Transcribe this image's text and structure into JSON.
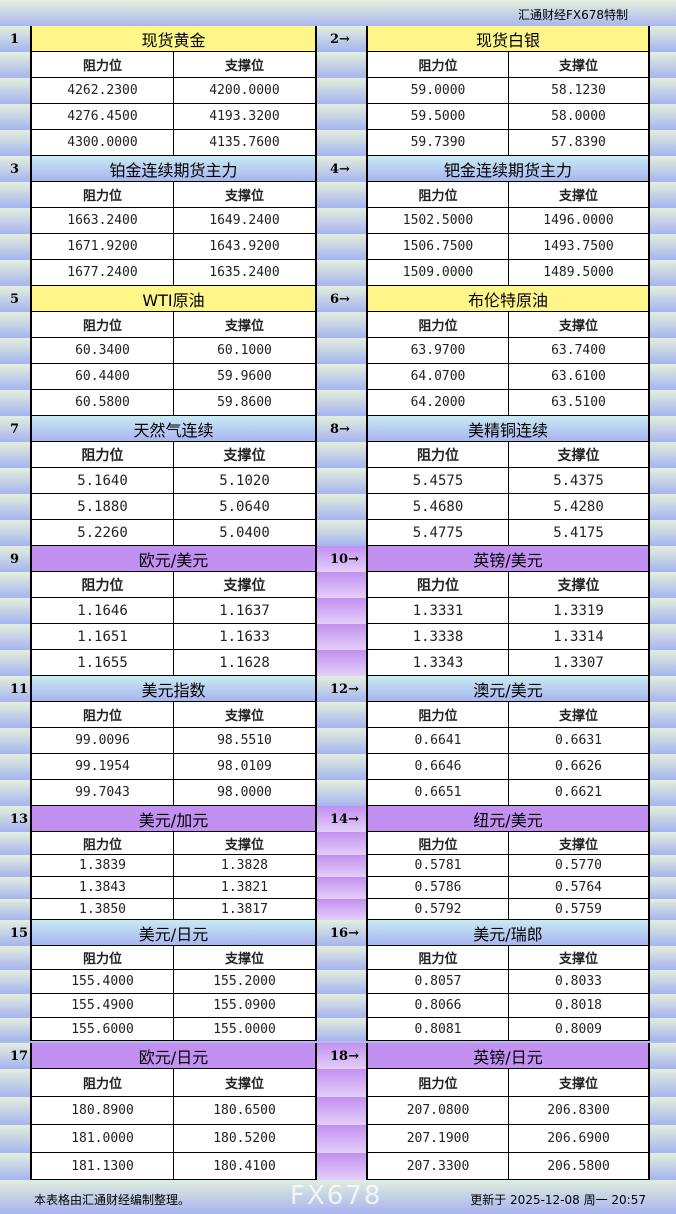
{
  "header": {
    "credit": "汇通财经FX678特制"
  },
  "columns": {
    "resistance": "阻力位",
    "support": "支撑位"
  },
  "sections": [
    {
      "no": "1",
      "title": "现货黄金",
      "color": "yellow",
      "rows": [
        [
          "4262.2300",
          "4200.0000"
        ],
        [
          "4276.4500",
          "4193.3200"
        ],
        [
          "4300.0000",
          "4135.7600"
        ]
      ]
    },
    {
      "no": "2→",
      "title": "现货白银",
      "color": "yellow",
      "rows": [
        [
          "59.0000",
          "58.1230"
        ],
        [
          "59.5000",
          "58.0000"
        ],
        [
          "59.7390",
          "57.8390"
        ]
      ]
    },
    {
      "no": "3",
      "title": "铂金连续期货主力",
      "color": "blue",
      "rows": [
        [
          "1663.2400",
          "1649.2400"
        ],
        [
          "1671.9200",
          "1643.9200"
        ],
        [
          "1677.2400",
          "1635.2400"
        ]
      ]
    },
    {
      "no": "4→",
      "title": "钯金连续期货主力",
      "color": "blue",
      "rows": [
        [
          "1502.5000",
          "1496.0000"
        ],
        [
          "1506.7500",
          "1493.7500"
        ],
        [
          "1509.0000",
          "1489.5000"
        ]
      ]
    },
    {
      "no": "5",
      "title": "WTI原油",
      "color": "yellow",
      "rows": [
        [
          "60.3400",
          "60.1000"
        ],
        [
          "60.4400",
          "59.9600"
        ],
        [
          "60.5800",
          "59.8600"
        ]
      ]
    },
    {
      "no": "6→",
      "title": "布伦特原油",
      "color": "yellow",
      "rows": [
        [
          "63.9700",
          "63.7400"
        ],
        [
          "64.0700",
          "63.6100"
        ],
        [
          "64.2000",
          "63.5100"
        ]
      ]
    },
    {
      "no": "7",
      "title": "天然气连续",
      "color": "blue",
      "rows": [
        [
          "5.1640",
          "5.1020"
        ],
        [
          "5.1880",
          "5.0640"
        ],
        [
          "5.2260",
          "5.0400"
        ]
      ]
    },
    {
      "no": "8→",
      "title": "美精铜连续",
      "color": "blue",
      "rows": [
        [
          "5.4575",
          "5.4375"
        ],
        [
          "5.4680",
          "5.4280"
        ],
        [
          "5.4775",
          "5.4175"
        ]
      ]
    },
    {
      "no": "9",
      "title": "欧元/美元",
      "color": "purple",
      "rows": [
        [
          "1.1646",
          "1.1637"
        ],
        [
          "1.1651",
          "1.1633"
        ],
        [
          "1.1655",
          "1.1628"
        ]
      ]
    },
    {
      "no": "10→",
      "title": "英镑/美元",
      "color": "purple",
      "rows": [
        [
          "1.3331",
          "1.3319"
        ],
        [
          "1.3338",
          "1.3314"
        ],
        [
          "1.3343",
          "1.3307"
        ]
      ]
    },
    {
      "no": "11",
      "title": "美元指数",
      "color": "blue",
      "rows": [
        [
          "99.0096",
          "98.5510"
        ],
        [
          "99.1954",
          "98.0109"
        ],
        [
          "99.7043",
          "98.0000"
        ]
      ]
    },
    {
      "no": "12→",
      "title": "澳元/美元",
      "color": "blue",
      "rows": [
        [
          "0.6641",
          "0.6631"
        ],
        [
          "0.6646",
          "0.6626"
        ],
        [
          "0.6651",
          "0.6621"
        ]
      ]
    },
    {
      "no": "13",
      "title": "美元/加元",
      "color": "purple",
      "rows": [
        [
          "1.3839",
          "1.3828"
        ],
        [
          "1.3843",
          "1.3821"
        ],
        [
          "1.3850",
          "1.3817"
        ]
      ]
    },
    {
      "no": "14→",
      "title": "纽元/美元",
      "color": "purple",
      "rows": [
        [
          "0.5781",
          "0.5770"
        ],
        [
          "0.5786",
          "0.5764"
        ],
        [
          "0.5792",
          "0.5759"
        ]
      ]
    },
    {
      "no": "15",
      "title": "美元/日元",
      "color": "blue",
      "rows": [
        [
          "155.4000",
          "155.2000"
        ],
        [
          "155.4900",
          "155.0900"
        ],
        [
          "155.6000",
          "155.0000"
        ]
      ]
    },
    {
      "no": "16→",
      "title": "美元/瑞郎",
      "color": "blue",
      "rows": [
        [
          "0.8057",
          "0.8033"
        ],
        [
          "0.8066",
          "0.8018"
        ],
        [
          "0.8081",
          "0.8009"
        ]
      ]
    },
    {
      "no": "17",
      "title": "欧元/日元",
      "color": "purple",
      "rows": [
        [
          "180.8900",
          "180.6500"
        ],
        [
          "181.0000",
          "180.5200"
        ],
        [
          "181.1300",
          "180.4100"
        ]
      ]
    },
    {
      "no": "18→",
      "title": "英镑/日元",
      "color": "purple",
      "rows": [
        [
          "207.0800",
          "206.8300"
        ],
        [
          "207.1900",
          "206.6900"
        ],
        [
          "207.3300",
          "206.5800"
        ]
      ]
    }
  ],
  "footer": {
    "note": "本表格由汇通财经编制整理。",
    "updated": "更新于 2025-12-08 周一 20:57"
  },
  "watermark": "FX678"
}
